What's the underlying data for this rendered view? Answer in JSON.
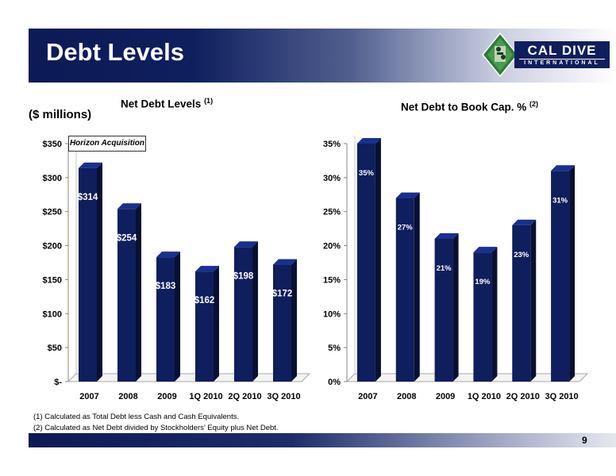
{
  "header": {
    "title": "Debt Levels",
    "logo": {
      "name": "CAL DIVE",
      "subtitle": "INTERNATIONAL"
    }
  },
  "chart_data": [
    {
      "type": "bar",
      "title": "Net Debt Levels",
      "title_footnote": "(1)",
      "units_label": "($ millions)",
      "categories": [
        "2007",
        "2008",
        "2009",
        "1Q 2010",
        "2Q 2010",
        "3Q 2010"
      ],
      "values": [
        314,
        254,
        183,
        162,
        198,
        172
      ],
      "data_labels": [
        "$314",
        "$254",
        "$183",
        "$162",
        "$198",
        "$172"
      ],
      "ylim": [
        0,
        350
      ],
      "yticks": [
        0,
        50,
        100,
        150,
        200,
        250,
        300,
        350
      ],
      "ytick_labels": [
        "$-",
        "$50",
        "$100",
        "$150",
        "$200",
        "$250",
        "$300",
        "$350"
      ],
      "annotation": "Horizon Acquisition",
      "bar_color": "#0f1e5c",
      "grid": false
    },
    {
      "type": "bar",
      "title": "Net Debt to Book Cap. %",
      "title_footnote": "(2)",
      "categories": [
        "2007",
        "2008",
        "2009",
        "1Q 2010",
        "2Q 2010",
        "3Q 2010"
      ],
      "values": [
        35,
        27,
        21,
        19,
        23,
        31
      ],
      "data_labels": [
        "35%",
        "27%",
        "21%",
        "19%",
        "23%",
        "31%"
      ],
      "ylim": [
        0,
        35
      ],
      "yticks": [
        0,
        5,
        10,
        15,
        20,
        25,
        30,
        35
      ],
      "ytick_labels": [
        "0%",
        "5%",
        "10%",
        "15%",
        "20%",
        "25%",
        "30%",
        "35%"
      ],
      "bar_color": "#0f1e5c",
      "grid": false
    }
  ],
  "footnotes": [
    "(1)   Calculated as Total Debt less Cash and Cash Equivalents.",
    "(2)   Calculated as Net Debt divided by Stockholders’ Equity plus Net Debt."
  ],
  "page_number": "9"
}
